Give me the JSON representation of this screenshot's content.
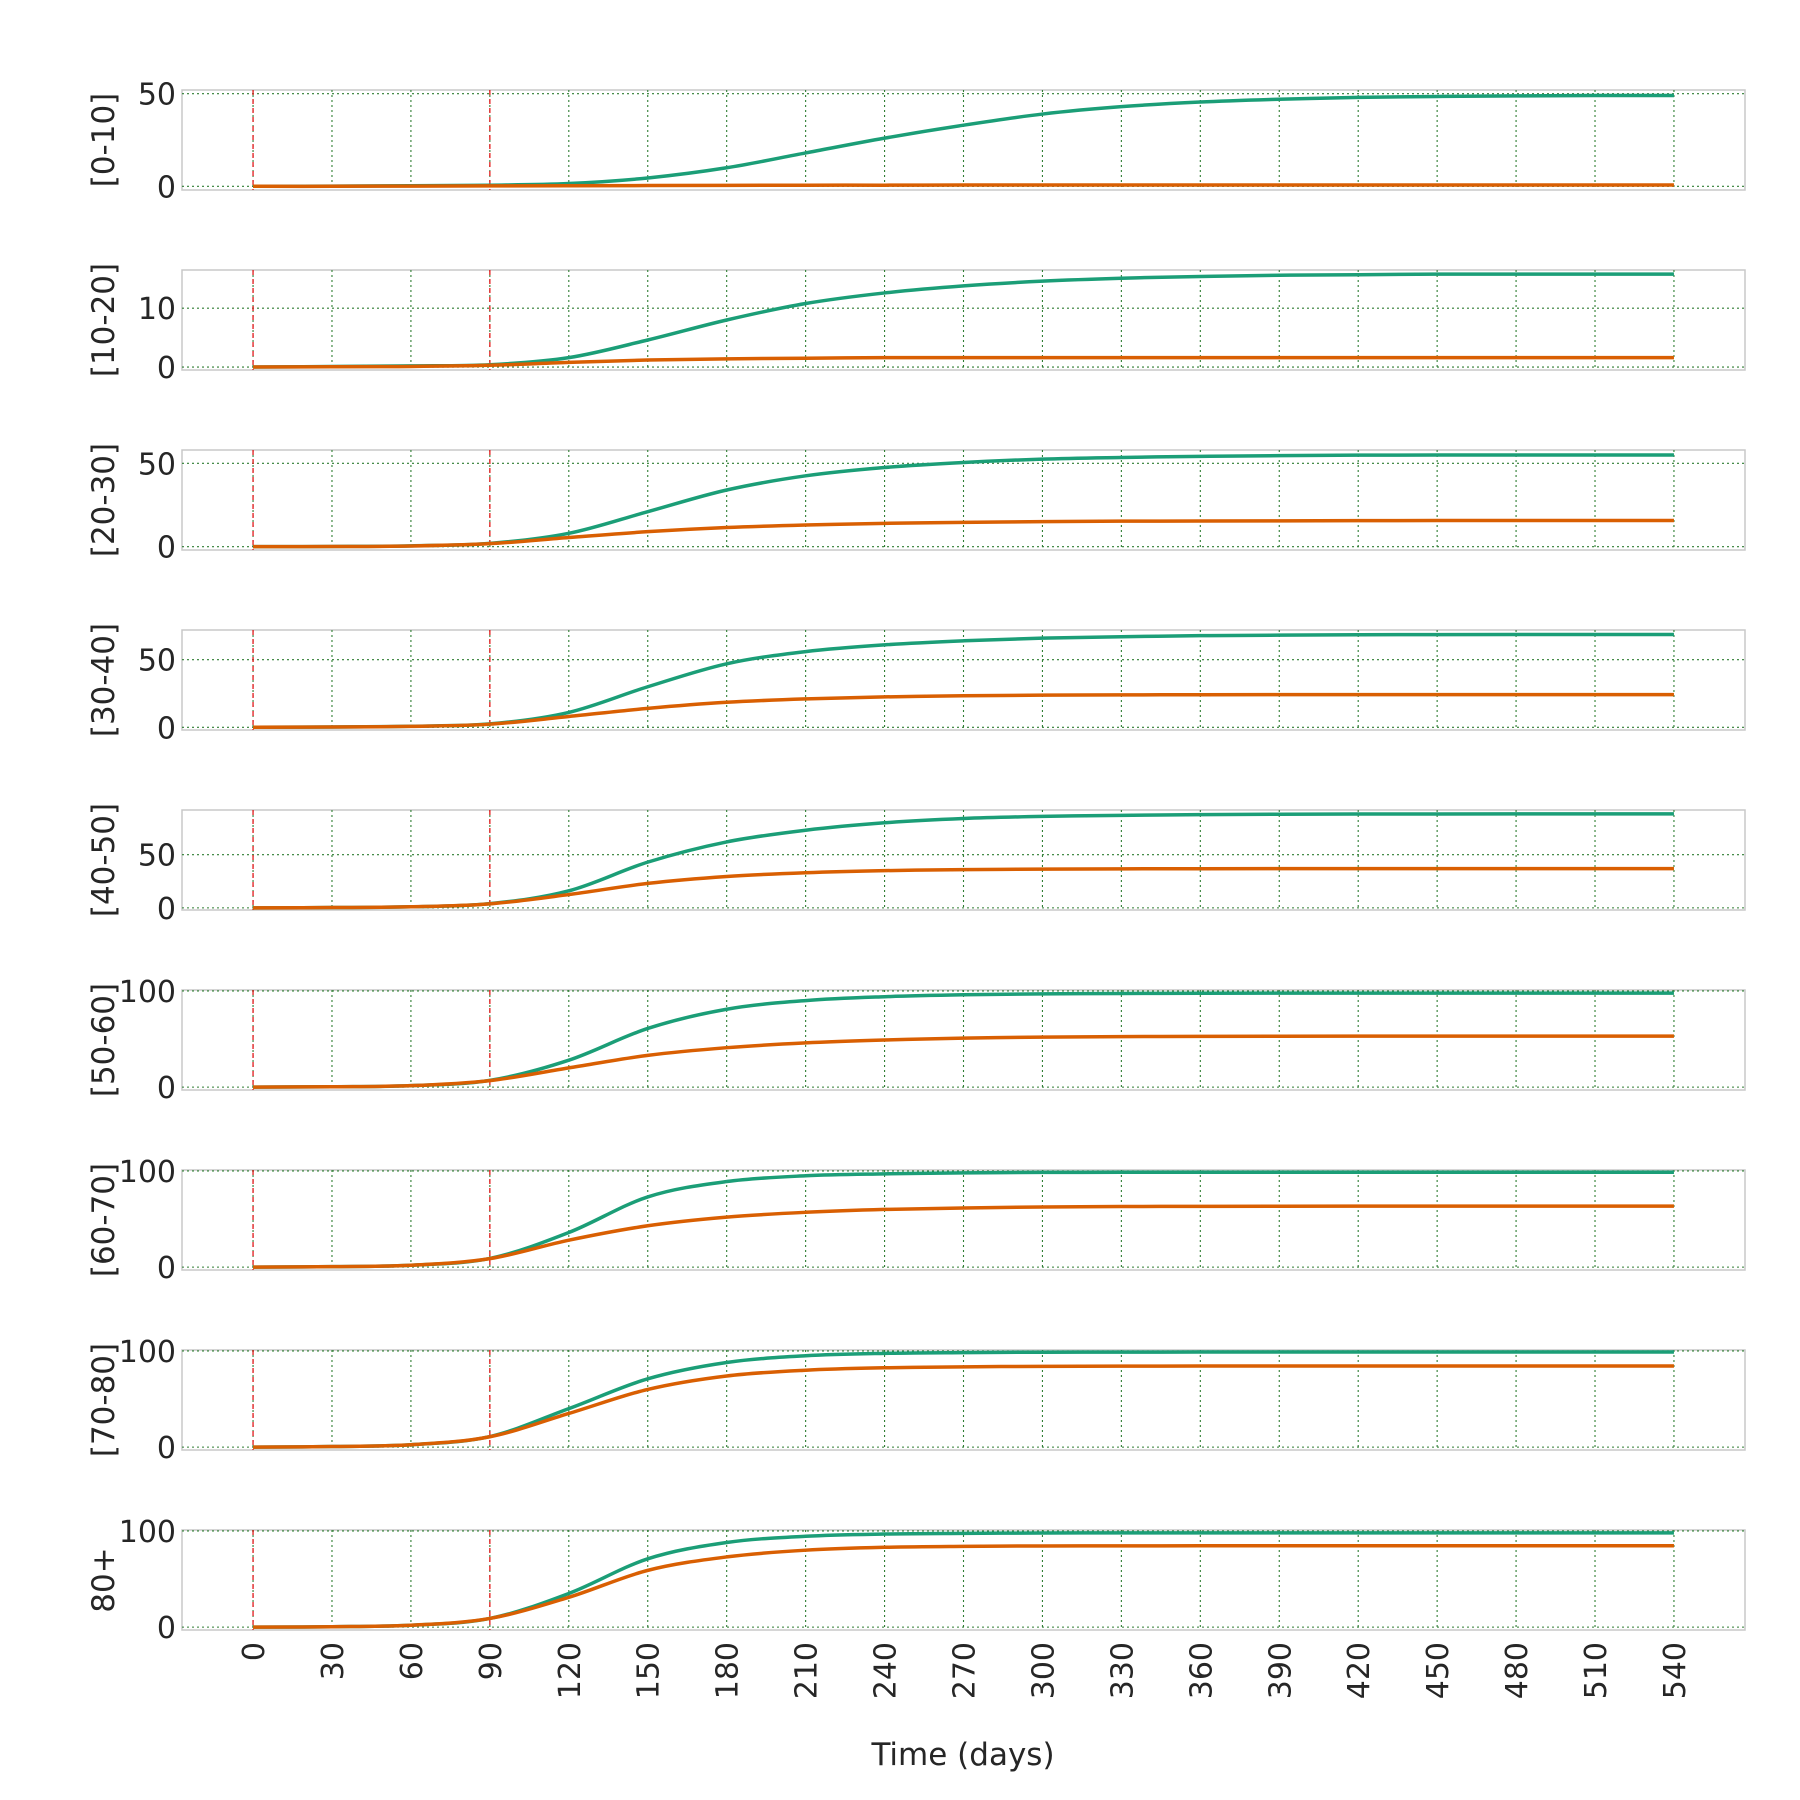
{
  "chart_data": {
    "type": "line",
    "layout": "small-multiples",
    "xlabel": "Time (days)",
    "x_ticks": [
      0,
      30,
      60,
      90,
      120,
      150,
      180,
      210,
      240,
      270,
      300,
      330,
      360,
      390,
      420,
      450,
      480,
      510,
      540
    ],
    "xlim": [
      -27,
      567
    ],
    "vertical_markers": [
      0,
      90
    ],
    "grid": true,
    "colors": {
      "series_a": "#1b9e77",
      "series_b": "#d95f02",
      "markers": "#e41a1c",
      "grid": "#2e7d32"
    },
    "x": [
      0,
      30,
      60,
      90,
      120,
      150,
      180,
      210,
      240,
      270,
      300,
      330,
      360,
      390,
      420,
      450,
      480,
      510,
      540
    ],
    "panels": [
      {
        "label": "[0-10]",
        "yticks": [
          0,
          50
        ],
        "ylim": [
          -2,
          52
        ],
        "series": [
          {
            "values": [
              0,
              0.1,
              0.3,
              0.6,
              1.5,
              4.5,
              10,
              18,
              26,
              33,
              39,
              43,
              45.5,
              47,
              48,
              48.5,
              48.8,
              49,
              49
            ]
          },
          {
            "values": [
              0,
              0,
              0.1,
              0.2,
              0.3,
              0.4,
              0.5,
              0.6,
              0.6,
              0.7,
              0.7,
              0.7,
              0.7,
              0.7,
              0.7,
              0.7,
              0.7,
              0.7,
              0.7
            ]
          }
        ]
      },
      {
        "label": "[10-20]",
        "yticks": [
          0,
          10
        ],
        "ylim": [
          -0.5,
          16.5
        ],
        "series": [
          {
            "values": [
              0,
              0.1,
              0.2,
              0.4,
              1.6,
              4.6,
              8,
              10.8,
              12.6,
              13.8,
              14.6,
              15.1,
              15.4,
              15.6,
              15.7,
              15.8,
              15.8,
              15.8,
              15.8
            ]
          },
          {
            "values": [
              0,
              0.05,
              0.1,
              0.3,
              0.8,
              1.2,
              1.4,
              1.5,
              1.6,
              1.6,
              1.6,
              1.6,
              1.6,
              1.6,
              1.6,
              1.6,
              1.6,
              1.6,
              1.6
            ]
          }
        ]
      },
      {
        "label": "[20-30]",
        "yticks": [
          0,
          50
        ],
        "ylim": [
          -2,
          58
        ],
        "series": [
          {
            "values": [
              0,
              0.1,
              0.5,
              2,
              8,
              21,
              34,
              42.5,
              47.5,
              50.5,
              52.5,
              53.5,
              54.2,
              54.6,
              54.9,
              55,
              55,
              55,
              55
            ]
          },
          {
            "values": [
              0,
              0.1,
              0.4,
              1.8,
              5.5,
              9,
              11.5,
              13,
              14,
              14.6,
              15,
              15.3,
              15.4,
              15.5,
              15.6,
              15.7,
              15.7,
              15.7,
              15.7
            ]
          }
        ]
      },
      {
        "label": "[30-40]",
        "yticks": [
          0,
          50
        ],
        "ylim": [
          -2,
          72
        ],
        "series": [
          {
            "values": [
              0,
              0.2,
              0.8,
              2.5,
              11,
              30,
              47,
              56,
              61,
              64,
              66,
              67,
              67.8,
              68.2,
              68.5,
              68.6,
              68.7,
              68.7,
              68.7
            ]
          },
          {
            "values": [
              0,
              0.2,
              0.7,
              2.3,
              8,
              14,
              18.5,
              21,
              22.5,
              23.3,
              23.8,
              24,
              24.1,
              24.2,
              24.2,
              24.2,
              24.2,
              24.2,
              24.2
            ]
          }
        ]
      },
      {
        "label": "[40-50]",
        "yticks": [
          0,
          50
        ],
        "ylim": [
          -2,
          92
        ],
        "series": [
          {
            "values": [
              0,
              0.3,
              1,
              4,
              16,
              43,
              62,
              73,
              80,
              84,
              86,
              87,
              87.6,
              88,
              88.2,
              88.3,
              88.4,
              88.4,
              88.4
            ]
          },
          {
            "values": [
              0,
              0.3,
              1,
              3.8,
              12.5,
              23,
              29.5,
              33,
              35,
              36,
              36.4,
              36.7,
              36.8,
              36.9,
              36.9,
              36.9,
              36.9,
              36.9,
              36.9
            ]
          }
        ]
      },
      {
        "label": "[50-60]",
        "yticks": [
          0,
          100
        ],
        "ylim": [
          -3,
          101
        ],
        "series": [
          {
            "values": [
              0,
              0.4,
              1.5,
              7,
              28,
              61,
              81,
              90,
              94,
              96,
              97,
              97.4,
              97.6,
              97.7,
              97.8,
              97.8,
              97.8,
              97.8,
              97.8
            ]
          },
          {
            "values": [
              0,
              0.4,
              1.5,
              6.8,
              20,
              33,
              41,
              46,
              49,
              51,
              52,
              52.5,
              52.8,
              52.9,
              53,
              53,
              53,
              53,
              53
            ]
          }
        ]
      },
      {
        "label": "[60-70]",
        "yticks": [
          0,
          100
        ],
        "ylim": [
          -3,
          101
        ],
        "series": [
          {
            "values": [
              0,
              0.5,
              2,
              9,
              36,
              73,
              89,
              95,
              97,
              98,
              98.5,
              98.6,
              98.7,
              98.7,
              98.7,
              98.7,
              98.7,
              98.7,
              98.7
            ]
          },
          {
            "values": [
              0,
              0.5,
              2,
              8.8,
              28,
              43,
              52,
              57,
              60,
              61.5,
              62.5,
              63,
              63.2,
              63.3,
              63.4,
              63.4,
              63.4,
              63.4,
              63.4
            ]
          }
        ]
      },
      {
        "label": "[70-80]",
        "yticks": [
          0,
          100
        ],
        "ylim": [
          -3,
          101
        ],
        "series": [
          {
            "values": [
              0,
              0.6,
              2.5,
              11,
              40,
              71,
              88,
              95,
              97.5,
              98.3,
              98.7,
              98.8,
              98.9,
              98.9,
              98.9,
              98.9,
              98.9,
              98.9,
              98.9
            ]
          },
          {
            "values": [
              0,
              0.6,
              2.5,
              10.8,
              35,
              60,
              74,
              80,
              82.5,
              83.5,
              84,
              84.2,
              84.3,
              84.4,
              84.4,
              84.4,
              84.4,
              84.4,
              84.4
            ]
          }
        ]
      },
      {
        "label": "80+",
        "yticks": [
          0,
          100
        ],
        "ylim": [
          -3,
          101
        ],
        "series": [
          {
            "values": [
              0,
              0.4,
              2,
              9,
              35,
              71,
              88,
              94.5,
              96.8,
              97.5,
              97.9,
              98,
              98,
              98,
              98,
              98,
              98,
              98,
              98
            ]
          },
          {
            "values": [
              0,
              0.4,
              2,
              9,
              31,
              59,
              73,
              80,
              83,
              84,
              84.4,
              84.5,
              84.6,
              84.6,
              84.6,
              84.6,
              84.6,
              84.6,
              84.6
            ]
          }
        ]
      }
    ]
  }
}
